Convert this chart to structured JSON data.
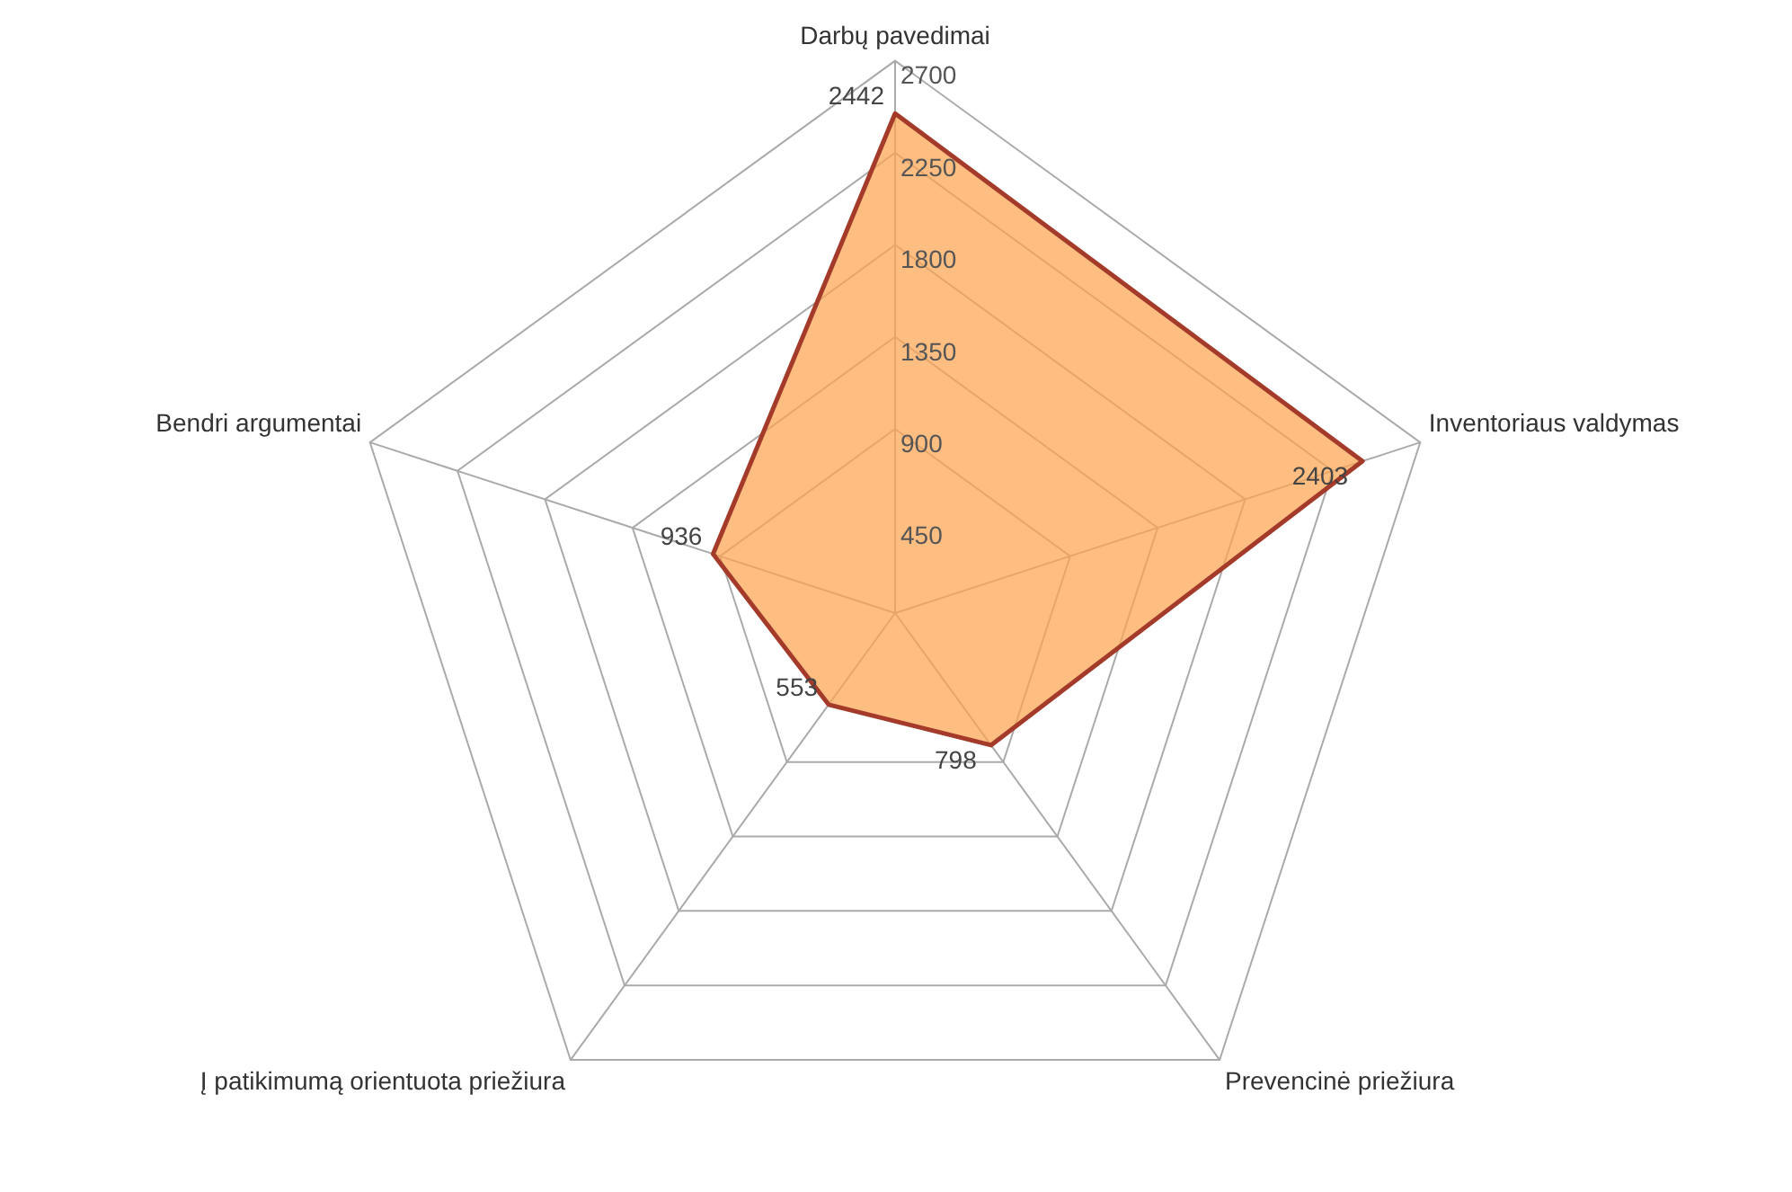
{
  "chart_data": {
    "type": "radar",
    "categories": [
      "Darbų pavedimai",
      "Inventoriaus valdymas",
      "Prevencinė priežiura",
      "Į patikimumą orientuota priežiura",
      "Bendri argumentai"
    ],
    "series": [
      {
        "color": "#a33a2a",
        "values": [
          2442,
          2403,
          798,
          553,
          936
        ]
      }
    ],
    "ylim": [
      0,
      2700
    ],
    "yticks": [
      450,
      900,
      1350,
      1800,
      2250,
      2700
    ],
    "data_labels": true,
    "grid": true,
    "legend": false,
    "marker": "none"
  }
}
